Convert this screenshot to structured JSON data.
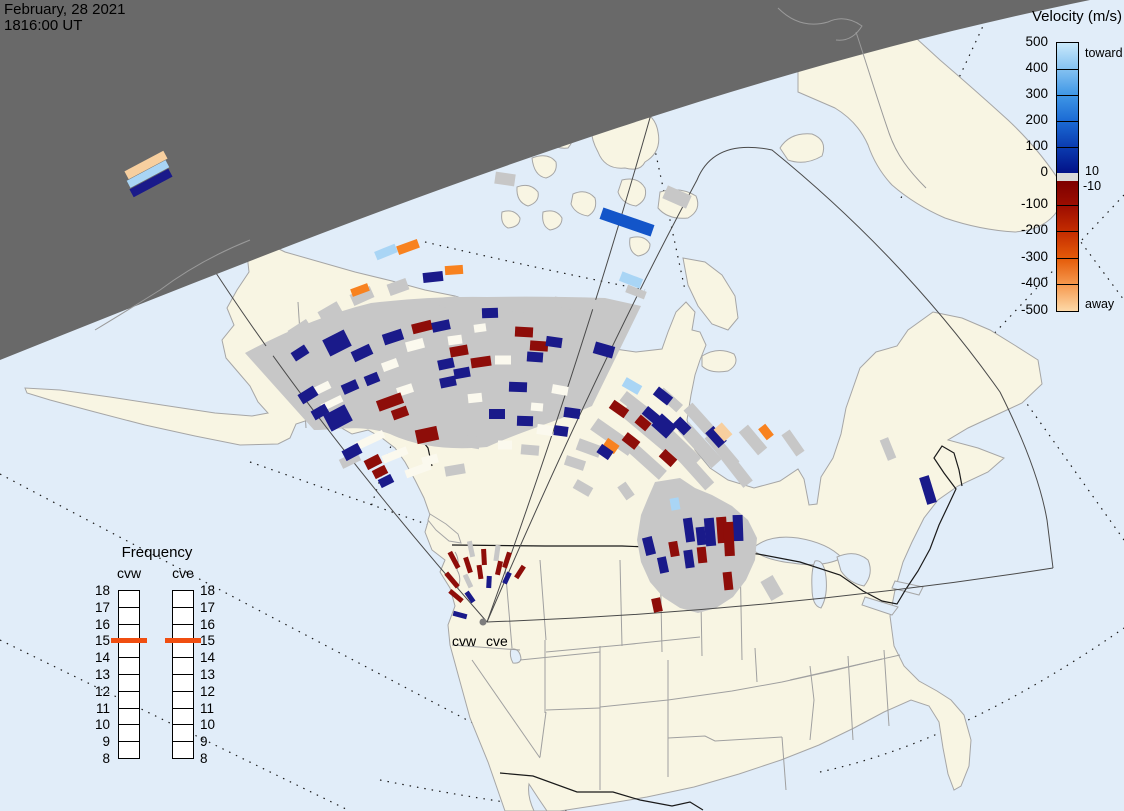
{
  "header": {
    "date": "February, 28 2021",
    "time": "1816:00 UT"
  },
  "velocity_legend": {
    "title": "Velocity (m/s)",
    "toward_label": "toward",
    "away_label": "away",
    "upper_threshold": "10",
    "lower_threshold": "-10",
    "ticks": [
      500,
      400,
      300,
      200,
      100,
      0,
      -100,
      -200,
      -300,
      -400,
      -500
    ],
    "toward_colors": [
      "#c9e9fb",
      "#85c2f1",
      "#3f97e6",
      "#1b6ad4",
      "#0b3cb0",
      "#021187"
    ],
    "away_colors": [
      "#7e0000",
      "#9e0e00",
      "#c62e00",
      "#e55c0a",
      "#f69a50",
      "#fdd9a8"
    ],
    "zero_band_color": "#d9d9d9"
  },
  "frequency_legend": {
    "title": "Frequency",
    "columns": [
      "cvw",
      "cve"
    ],
    "ticks": [
      18,
      17,
      16,
      15,
      14,
      13,
      12,
      11,
      10,
      9,
      8
    ],
    "marker_value": 15,
    "marker_color": "#f04e10"
  },
  "map": {
    "radar_labels": [
      "cvw",
      "cve"
    ],
    "cell_colors": {
      "n": "#1a1a8a",
      "r": "#8e0d09",
      "o": "#f8821f",
      "lb": "#a9d5f5",
      "p": "#f7cf9f",
      "bb": "#1355c9",
      "g": "#c7c7c7",
      "w": "#fbf9ee"
    },
    "cells": [
      [
        146,
        165,
        -28,
        44,
        9,
        "p"
      ],
      [
        148,
        174,
        -28,
        44,
        8,
        "lb"
      ],
      [
        151,
        183,
        -28,
        44,
        9,
        "n"
      ],
      [
        386,
        252,
        -22,
        22,
        9,
        "lb"
      ],
      [
        408,
        247,
        -20,
        22,
        9,
        "o"
      ],
      [
        360,
        290,
        -20,
        18,
        8,
        "o"
      ],
      [
        433,
        277,
        -6,
        20,
        10,
        "n"
      ],
      [
        454,
        270,
        -4,
        18,
        9,
        "o"
      ],
      [
        627,
        222,
        19,
        54,
        12,
        "bb"
      ],
      [
        631,
        280,
        21,
        22,
        10,
        "lb"
      ],
      [
        337,
        343,
        -27,
        24,
        18,
        "n"
      ],
      [
        362,
        353,
        -25,
        20,
        11,
        "n"
      ],
      [
        393,
        337,
        -18,
        20,
        11,
        "n"
      ],
      [
        422,
        327,
        -14,
        20,
        10,
        "r"
      ],
      [
        441,
        326,
        -12,
        18,
        10,
        "n"
      ],
      [
        459,
        351,
        -10,
        18,
        10,
        "r"
      ],
      [
        446,
        364,
        -12,
        16,
        10,
        "n"
      ],
      [
        481,
        362,
        -8,
        20,
        10,
        "r"
      ],
      [
        462,
        373,
        -10,
        16,
        10,
        "n"
      ],
      [
        448,
        382,
        -12,
        16,
        10,
        "n"
      ],
      [
        300,
        353,
        -33,
        16,
        10,
        "n"
      ],
      [
        308,
        395,
        -32,
        18,
        11,
        "n"
      ],
      [
        320,
        412,
        -30,
        16,
        10,
        "n"
      ],
      [
        350,
        387,
        -24,
        16,
        10,
        "n"
      ],
      [
        372,
        379,
        -22,
        14,
        10,
        "n"
      ],
      [
        390,
        402,
        -20,
        26,
        11,
        "r"
      ],
      [
        400,
        413,
        -20,
        16,
        10,
        "r"
      ],
      [
        338,
        418,
        -28,
        24,
        18,
        "n"
      ],
      [
        352,
        452,
        -28,
        18,
        11,
        "n"
      ],
      [
        373,
        462,
        -27,
        16,
        10,
        "r"
      ],
      [
        380,
        472,
        -27,
        14,
        9,
        "r"
      ],
      [
        386,
        481,
        -27,
        14,
        9,
        "n"
      ],
      [
        427,
        435,
        -12,
        22,
        14,
        "r"
      ],
      [
        490,
        313,
        -2,
        16,
        10,
        "n"
      ],
      [
        524,
        332,
        3,
        18,
        10,
        "r"
      ],
      [
        539,
        346,
        4,
        18,
        10,
        "r"
      ],
      [
        535,
        357,
        4,
        16,
        10,
        "n"
      ],
      [
        554,
        342,
        8,
        16,
        10,
        "n"
      ],
      [
        604,
        350,
        16,
        20,
        12,
        "n"
      ],
      [
        518,
        387,
        2,
        18,
        10,
        "n"
      ],
      [
        497,
        414,
        0,
        16,
        10,
        "n"
      ],
      [
        525,
        421,
        2,
        16,
        10,
        "n"
      ],
      [
        572,
        413,
        8,
        16,
        10,
        "n"
      ],
      [
        561,
        431,
        8,
        14,
        10,
        "n"
      ],
      [
        632,
        386,
        30,
        18,
        10,
        "lb"
      ],
      [
        663,
        396,
        38,
        18,
        10,
        "n"
      ],
      [
        619,
        409,
        35,
        18,
        10,
        "r"
      ],
      [
        651,
        415,
        40,
        16,
        10,
        "n"
      ],
      [
        643,
        423,
        40,
        14,
        10,
        "r"
      ],
      [
        664,
        426,
        42,
        20,
        16,
        "n"
      ],
      [
        682,
        426,
        45,
        16,
        11,
        "n"
      ],
      [
        631,
        441,
        38,
        16,
        10,
        "r"
      ],
      [
        611,
        446,
        35,
        14,
        10,
        "o"
      ],
      [
        605,
        452,
        35,
        14,
        10,
        "n"
      ],
      [
        716,
        437,
        48,
        20,
        11,
        "n"
      ],
      [
        723,
        432,
        48,
        16,
        11,
        "p"
      ],
      [
        668,
        458,
        42,
        16,
        10,
        "r"
      ],
      [
        766,
        432,
        52,
        14,
        9,
        "o"
      ],
      [
        675,
        504,
        80,
        12,
        9,
        "lb"
      ],
      [
        689,
        530,
        82,
        24,
        9,
        "n"
      ],
      [
        701,
        536,
        84,
        18,
        9,
        "n"
      ],
      [
        710,
        532,
        85,
        28,
        10,
        "n"
      ],
      [
        722,
        530,
        86,
        26,
        10,
        "r"
      ],
      [
        702,
        555,
        84,
        16,
        9,
        "r"
      ],
      [
        689,
        559,
        82,
        18,
        9,
        "n"
      ],
      [
        649,
        546,
        76,
        18,
        10,
        "n"
      ],
      [
        663,
        565,
        78,
        16,
        9,
        "n"
      ],
      [
        674,
        549,
        80,
        15,
        9,
        "r"
      ],
      [
        738,
        528,
        88,
        26,
        10,
        "n"
      ],
      [
        729,
        539,
        87,
        34,
        10,
        "r"
      ],
      [
        728,
        581,
        84,
        18,
        9,
        "r"
      ],
      [
        657,
        605,
        78,
        14,
        9,
        "r"
      ],
      [
        928,
        490,
        73,
        28,
        10,
        "n"
      ]
    ],
    "gray_cells": [
      [
        636,
        292,
        21,
        20,
        8,
        "g"
      ],
      [
        677,
        197,
        24,
        26,
        14,
        "g"
      ],
      [
        888,
        449,
        68,
        22,
        9,
        "g"
      ],
      [
        613,
        437,
        35,
        46,
        14,
        "g"
      ],
      [
        648,
        428,
        40,
        60,
        16,
        "g"
      ],
      [
        672,
        442,
        44,
        64,
        18,
        "g"
      ],
      [
        700,
        445,
        48,
        50,
        14,
        "g"
      ],
      [
        722,
        450,
        50,
        40,
        12,
        "g"
      ],
      [
        648,
        462,
        42,
        40,
        12,
        "g"
      ],
      [
        695,
        470,
        48,
        44,
        12,
        "g"
      ],
      [
        737,
        470,
        52,
        36,
        12,
        "g"
      ],
      [
        753,
        440,
        50,
        30,
        12,
        "g"
      ],
      [
        635,
        405,
        38,
        30,
        12,
        "g"
      ],
      [
        700,
        420,
        48,
        36,
        12,
        "g"
      ],
      [
        670,
        400,
        42,
        26,
        10,
        "g"
      ],
      [
        793,
        443,
        55,
        26,
        10,
        "g"
      ],
      [
        626,
        491,
        55,
        16,
        10,
        "g"
      ],
      [
        772,
        588,
        60,
        22,
        14,
        "g"
      ],
      [
        583,
        488,
        30,
        18,
        10,
        "g"
      ],
      [
        589,
        448,
        20,
        24,
        12,
        "g"
      ],
      [
        575,
        463,
        18,
        20,
        10,
        "g"
      ],
      [
        300,
        330,
        -33,
        22,
        12,
        "g"
      ],
      [
        268,
        352,
        -36,
        20,
        12,
        "g"
      ],
      [
        330,
        312,
        -30,
        22,
        12,
        "g"
      ],
      [
        362,
        296,
        -24,
        22,
        12,
        "g"
      ],
      [
        398,
        287,
        -20,
        20,
        12,
        "g"
      ],
      [
        520,
        318,
        2,
        20,
        12,
        "g"
      ],
      [
        563,
        303,
        10,
        18,
        10,
        "g"
      ],
      [
        600,
        306,
        14,
        18,
        10,
        "g"
      ],
      [
        350,
        460,
        -26,
        20,
        10,
        "g"
      ],
      [
        455,
        470,
        -10,
        20,
        10,
        "g"
      ],
      [
        530,
        450,
        5,
        18,
        10,
        "g"
      ],
      [
        472,
        442,
        10,
        16,
        12,
        "g"
      ],
      [
        505,
        179,
        8,
        20,
        12,
        "g"
      ],
      [
        448,
        302,
        -6,
        18,
        10,
        "g"
      ]
    ],
    "gap_cells": [
      [
        415,
        345,
        -15,
        18,
        10,
        "w"
      ],
      [
        390,
        365,
        -20,
        16,
        9,
        "w"
      ],
      [
        405,
        390,
        -18,
        16,
        9,
        "w"
      ],
      [
        455,
        340,
        -8,
        14,
        9,
        "w"
      ],
      [
        503,
        360,
        0,
        16,
        9,
        "w"
      ],
      [
        545,
        430,
        8,
        16,
        10,
        "w"
      ],
      [
        475,
        398,
        -6,
        14,
        9,
        "w"
      ],
      [
        430,
        460,
        -15,
        16,
        9,
        "w"
      ],
      [
        505,
        445,
        0,
        14,
        9,
        "w"
      ],
      [
        560,
        390,
        10,
        16,
        9,
        "w"
      ],
      [
        480,
        328,
        -8,
        12,
        8,
        "w"
      ],
      [
        537,
        407,
        5,
        12,
        8,
        "w"
      ],
      [
        318,
        390,
        -26,
        26,
        8,
        "w"
      ],
      [
        332,
        403,
        -26,
        22,
        7,
        "w"
      ],
      [
        370,
        440,
        -25,
        30,
        8,
        "w"
      ],
      [
        395,
        455,
        -22,
        26,
        8,
        "w"
      ],
      [
        418,
        470,
        -20,
        26,
        8,
        "w"
      ]
    ],
    "vectors": [
      [
        460,
        615,
        -75,
        5,
        14,
        "n"
      ],
      [
        456,
        596,
        -50,
        5,
        16,
        "r"
      ],
      [
        452,
        580,
        -40,
        5,
        18,
        "r"
      ],
      [
        470,
        597,
        -35,
        5,
        12,
        "n"
      ],
      [
        454,
        560,
        -28,
        5,
        18,
        "r"
      ],
      [
        468,
        581,
        -25,
        5,
        14,
        "g"
      ],
      [
        468,
        565,
        -18,
        5,
        16,
        "r"
      ],
      [
        471,
        549,
        -12,
        5,
        16,
        "g"
      ],
      [
        480,
        572,
        -8,
        5,
        14,
        "r"
      ],
      [
        484,
        557,
        -3,
        5,
        16,
        "r"
      ],
      [
        489,
        582,
        3,
        5,
        12,
        "n"
      ],
      [
        497,
        553,
        8,
        5,
        16,
        "g"
      ],
      [
        499,
        568,
        13,
        5,
        14,
        "r"
      ],
      [
        507,
        560,
        18,
        5,
        16,
        "r"
      ],
      [
        507,
        578,
        25,
        5,
        12,
        "n"
      ],
      [
        520,
        572,
        33,
        5,
        14,
        "r"
      ]
    ]
  }
}
